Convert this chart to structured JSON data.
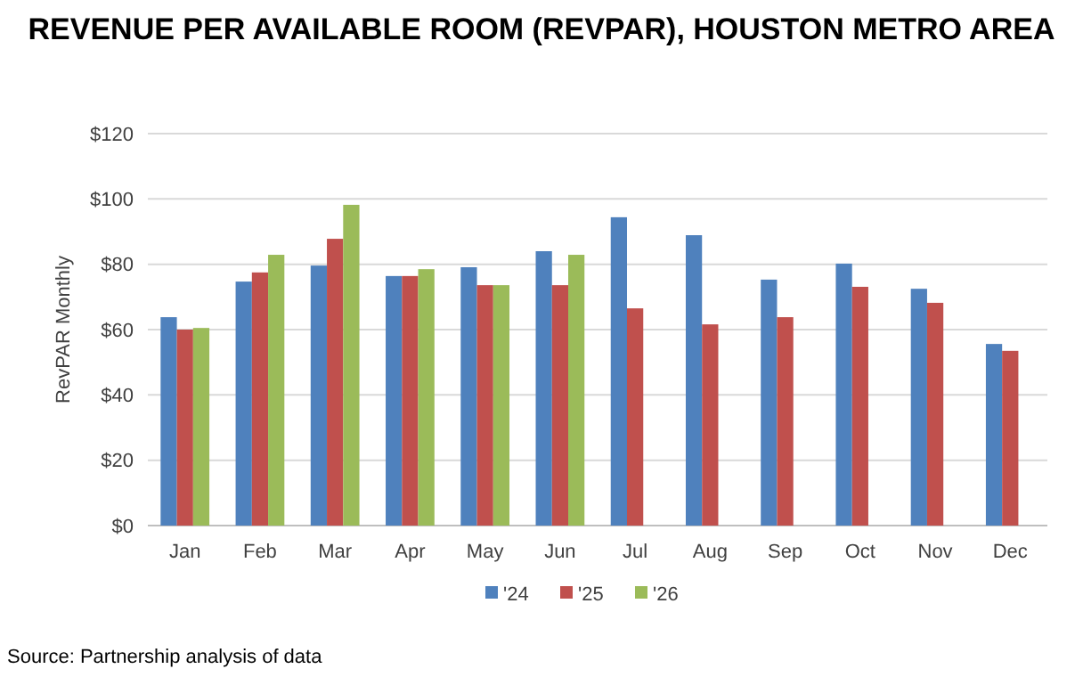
{
  "chart_data": {
    "type": "bar",
    "title": "REVENUE PER AVAILABLE ROOM (REVPAR), HOUSTON METRO AREA",
    "ylabel": "RevPAR Monthly",
    "categories": [
      "Jan",
      "Feb",
      "Mar",
      "Apr",
      "May",
      "Jun",
      "Jul",
      "Aug",
      "Sep",
      "Oct",
      "Nov",
      "Dec"
    ],
    "series": [
      {
        "name": "'24",
        "color": "#4f81bd",
        "values": [
          63.8,
          74.7,
          79.6,
          76.4,
          79.1,
          84,
          94.4,
          88.9,
          75.3,
          80.2,
          72.5,
          55.6
        ]
      },
      {
        "name": "'25",
        "color": "#c0504d",
        "values": [
          60,
          77.5,
          87.8,
          76.4,
          73.6,
          73.6,
          66.5,
          61.6,
          63.8,
          73.1,
          68.2,
          53.5
        ]
      },
      {
        "name": "'26",
        "color": "#9bbb59",
        "values": [
          60.5,
          82.9,
          98.2,
          78.5,
          73.6,
          82.9,
          null,
          null,
          null,
          null,
          null,
          null
        ]
      }
    ],
    "ylim": [
      0,
      120
    ],
    "yticks": [
      {
        "value": 0,
        "label": "$0"
      },
      {
        "value": 20,
        "label": "$20"
      },
      {
        "value": 40,
        "label": "$40"
      },
      {
        "value": 60,
        "label": "$60"
      },
      {
        "value": 80,
        "label": "$80"
      },
      {
        "value": 100,
        "label": "$100"
      },
      {
        "value": 120,
        "label": "$120"
      }
    ],
    "grid": "y",
    "legend": "bottom",
    "annotations": [
      "Source: Partnership analysis of data"
    ]
  }
}
